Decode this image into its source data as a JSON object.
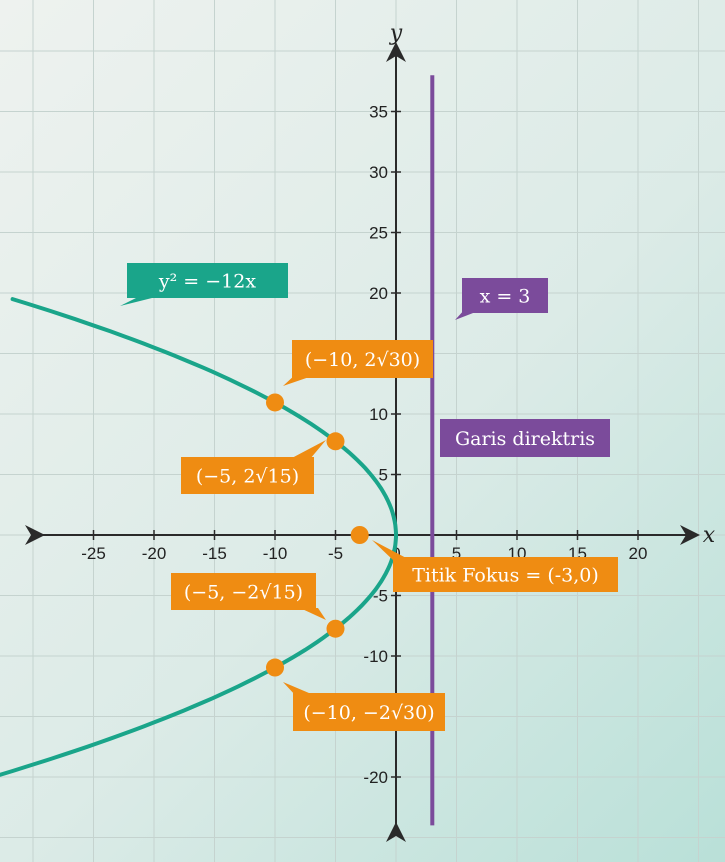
{
  "chart_data": {
    "type": "line",
    "title": "",
    "xlabel": "x",
    "ylabel": "y",
    "xlim": [
      -30,
      25
    ],
    "ylim": [
      -24,
      39
    ],
    "x_ticks": [
      -25,
      -20,
      -15,
      -10,
      -5,
      0,
      5,
      10,
      15,
      20
    ],
    "y_ticks": [
      -20,
      -10,
      -5,
      5,
      10,
      20,
      25,
      30,
      35
    ],
    "x_tick_labels": [
      "-25",
      "-20",
      "-15",
      "-10",
      "-5",
      "0",
      "5",
      "10",
      "15",
      "20"
    ],
    "y_tick_labels": [
      "-20",
      "-10",
      "-5",
      "5",
      "10",
      "20",
      "25",
      "30",
      "35"
    ],
    "grid": true,
    "series": [
      {
        "name": "y² = −12x",
        "kind": "parabola",
        "equation": "y^2 = -12x",
        "y_range": [
          -20.5,
          19.5
        ],
        "color": "#1aa58a"
      },
      {
        "name": "x = 3",
        "kind": "vertical-line",
        "x": 3,
        "y_range": [
          -24,
          38
        ],
        "color": "#7b4b9b"
      }
    ],
    "points": [
      {
        "label": "(−10, 2√30)",
        "x": -10,
        "y": 10.954
      },
      {
        "label": "(−5, 2√15)",
        "x": -5,
        "y": 7.746
      },
      {
        "label": "(−5, −2√15)",
        "x": -5,
        "y": -7.746
      },
      {
        "label": "(−10, −2√30)",
        "x": -10,
        "y": -10.954
      },
      {
        "label": "Titik Fokus = (-3,0)",
        "x": -3,
        "y": 0
      }
    ],
    "annotations": [
      {
        "text": "y² = −12x",
        "target": "parabola"
      },
      {
        "text": "x = 3",
        "target": "directrix"
      },
      {
        "text": "Garis direktris",
        "target": "directrix"
      }
    ],
    "colors": {
      "parabola": "#1aa58a",
      "directrix": "#7b4b9b",
      "points": "#ef8c12",
      "grid": "#c5d3cf",
      "axis": "#2a2a2a"
    }
  }
}
